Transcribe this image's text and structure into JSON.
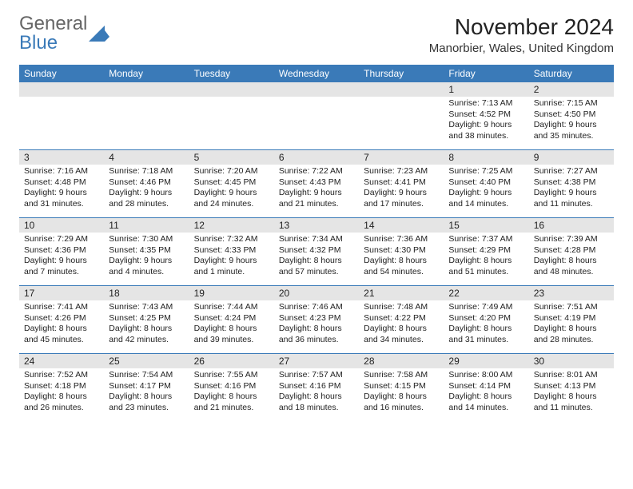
{
  "logo": {
    "line1": "General",
    "line2": "Blue"
  },
  "title": "November 2024",
  "location": "Manorbier, Wales, United Kingdom",
  "colors": {
    "header_bg": "#3a7ab8",
    "header_text": "#ffffff",
    "daynum_bg": "#e5e5e5",
    "border": "#3a7ab8",
    "text": "#222222",
    "background": "#ffffff"
  },
  "day_headers": [
    "Sunday",
    "Monday",
    "Tuesday",
    "Wednesday",
    "Thursday",
    "Friday",
    "Saturday"
  ],
  "weeks": [
    [
      {
        "day": "",
        "sunrise": "",
        "sunset": "",
        "daylight1": "",
        "daylight2": ""
      },
      {
        "day": "",
        "sunrise": "",
        "sunset": "",
        "daylight1": "",
        "daylight2": ""
      },
      {
        "day": "",
        "sunrise": "",
        "sunset": "",
        "daylight1": "",
        "daylight2": ""
      },
      {
        "day": "",
        "sunrise": "",
        "sunset": "",
        "daylight1": "",
        "daylight2": ""
      },
      {
        "day": "",
        "sunrise": "",
        "sunset": "",
        "daylight1": "",
        "daylight2": ""
      },
      {
        "day": "1",
        "sunrise": "Sunrise: 7:13 AM",
        "sunset": "Sunset: 4:52 PM",
        "daylight1": "Daylight: 9 hours",
        "daylight2": "and 38 minutes."
      },
      {
        "day": "2",
        "sunrise": "Sunrise: 7:15 AM",
        "sunset": "Sunset: 4:50 PM",
        "daylight1": "Daylight: 9 hours",
        "daylight2": "and 35 minutes."
      }
    ],
    [
      {
        "day": "3",
        "sunrise": "Sunrise: 7:16 AM",
        "sunset": "Sunset: 4:48 PM",
        "daylight1": "Daylight: 9 hours",
        "daylight2": "and 31 minutes."
      },
      {
        "day": "4",
        "sunrise": "Sunrise: 7:18 AM",
        "sunset": "Sunset: 4:46 PM",
        "daylight1": "Daylight: 9 hours",
        "daylight2": "and 28 minutes."
      },
      {
        "day": "5",
        "sunrise": "Sunrise: 7:20 AM",
        "sunset": "Sunset: 4:45 PM",
        "daylight1": "Daylight: 9 hours",
        "daylight2": "and 24 minutes."
      },
      {
        "day": "6",
        "sunrise": "Sunrise: 7:22 AM",
        "sunset": "Sunset: 4:43 PM",
        "daylight1": "Daylight: 9 hours",
        "daylight2": "and 21 minutes."
      },
      {
        "day": "7",
        "sunrise": "Sunrise: 7:23 AM",
        "sunset": "Sunset: 4:41 PM",
        "daylight1": "Daylight: 9 hours",
        "daylight2": "and 17 minutes."
      },
      {
        "day": "8",
        "sunrise": "Sunrise: 7:25 AM",
        "sunset": "Sunset: 4:40 PM",
        "daylight1": "Daylight: 9 hours",
        "daylight2": "and 14 minutes."
      },
      {
        "day": "9",
        "sunrise": "Sunrise: 7:27 AM",
        "sunset": "Sunset: 4:38 PM",
        "daylight1": "Daylight: 9 hours",
        "daylight2": "and 11 minutes."
      }
    ],
    [
      {
        "day": "10",
        "sunrise": "Sunrise: 7:29 AM",
        "sunset": "Sunset: 4:36 PM",
        "daylight1": "Daylight: 9 hours",
        "daylight2": "and 7 minutes."
      },
      {
        "day": "11",
        "sunrise": "Sunrise: 7:30 AM",
        "sunset": "Sunset: 4:35 PM",
        "daylight1": "Daylight: 9 hours",
        "daylight2": "and 4 minutes."
      },
      {
        "day": "12",
        "sunrise": "Sunrise: 7:32 AM",
        "sunset": "Sunset: 4:33 PM",
        "daylight1": "Daylight: 9 hours",
        "daylight2": "and 1 minute."
      },
      {
        "day": "13",
        "sunrise": "Sunrise: 7:34 AM",
        "sunset": "Sunset: 4:32 PM",
        "daylight1": "Daylight: 8 hours",
        "daylight2": "and 57 minutes."
      },
      {
        "day": "14",
        "sunrise": "Sunrise: 7:36 AM",
        "sunset": "Sunset: 4:30 PM",
        "daylight1": "Daylight: 8 hours",
        "daylight2": "and 54 minutes."
      },
      {
        "day": "15",
        "sunrise": "Sunrise: 7:37 AM",
        "sunset": "Sunset: 4:29 PM",
        "daylight1": "Daylight: 8 hours",
        "daylight2": "and 51 minutes."
      },
      {
        "day": "16",
        "sunrise": "Sunrise: 7:39 AM",
        "sunset": "Sunset: 4:28 PM",
        "daylight1": "Daylight: 8 hours",
        "daylight2": "and 48 minutes."
      }
    ],
    [
      {
        "day": "17",
        "sunrise": "Sunrise: 7:41 AM",
        "sunset": "Sunset: 4:26 PM",
        "daylight1": "Daylight: 8 hours",
        "daylight2": "and 45 minutes."
      },
      {
        "day": "18",
        "sunrise": "Sunrise: 7:43 AM",
        "sunset": "Sunset: 4:25 PM",
        "daylight1": "Daylight: 8 hours",
        "daylight2": "and 42 minutes."
      },
      {
        "day": "19",
        "sunrise": "Sunrise: 7:44 AM",
        "sunset": "Sunset: 4:24 PM",
        "daylight1": "Daylight: 8 hours",
        "daylight2": "and 39 minutes."
      },
      {
        "day": "20",
        "sunrise": "Sunrise: 7:46 AM",
        "sunset": "Sunset: 4:23 PM",
        "daylight1": "Daylight: 8 hours",
        "daylight2": "and 36 minutes."
      },
      {
        "day": "21",
        "sunrise": "Sunrise: 7:48 AM",
        "sunset": "Sunset: 4:22 PM",
        "daylight1": "Daylight: 8 hours",
        "daylight2": "and 34 minutes."
      },
      {
        "day": "22",
        "sunrise": "Sunrise: 7:49 AM",
        "sunset": "Sunset: 4:20 PM",
        "daylight1": "Daylight: 8 hours",
        "daylight2": "and 31 minutes."
      },
      {
        "day": "23",
        "sunrise": "Sunrise: 7:51 AM",
        "sunset": "Sunset: 4:19 PM",
        "daylight1": "Daylight: 8 hours",
        "daylight2": "and 28 minutes."
      }
    ],
    [
      {
        "day": "24",
        "sunrise": "Sunrise: 7:52 AM",
        "sunset": "Sunset: 4:18 PM",
        "daylight1": "Daylight: 8 hours",
        "daylight2": "and 26 minutes."
      },
      {
        "day": "25",
        "sunrise": "Sunrise: 7:54 AM",
        "sunset": "Sunset: 4:17 PM",
        "daylight1": "Daylight: 8 hours",
        "daylight2": "and 23 minutes."
      },
      {
        "day": "26",
        "sunrise": "Sunrise: 7:55 AM",
        "sunset": "Sunset: 4:16 PM",
        "daylight1": "Daylight: 8 hours",
        "daylight2": "and 21 minutes."
      },
      {
        "day": "27",
        "sunrise": "Sunrise: 7:57 AM",
        "sunset": "Sunset: 4:16 PM",
        "daylight1": "Daylight: 8 hours",
        "daylight2": "and 18 minutes."
      },
      {
        "day": "28",
        "sunrise": "Sunrise: 7:58 AM",
        "sunset": "Sunset: 4:15 PM",
        "daylight1": "Daylight: 8 hours",
        "daylight2": "and 16 minutes."
      },
      {
        "day": "29",
        "sunrise": "Sunrise: 8:00 AM",
        "sunset": "Sunset: 4:14 PM",
        "daylight1": "Daylight: 8 hours",
        "daylight2": "and 14 minutes."
      },
      {
        "day": "30",
        "sunrise": "Sunrise: 8:01 AM",
        "sunset": "Sunset: 4:13 PM",
        "daylight1": "Daylight: 8 hours",
        "daylight2": "and 11 minutes."
      }
    ]
  ]
}
